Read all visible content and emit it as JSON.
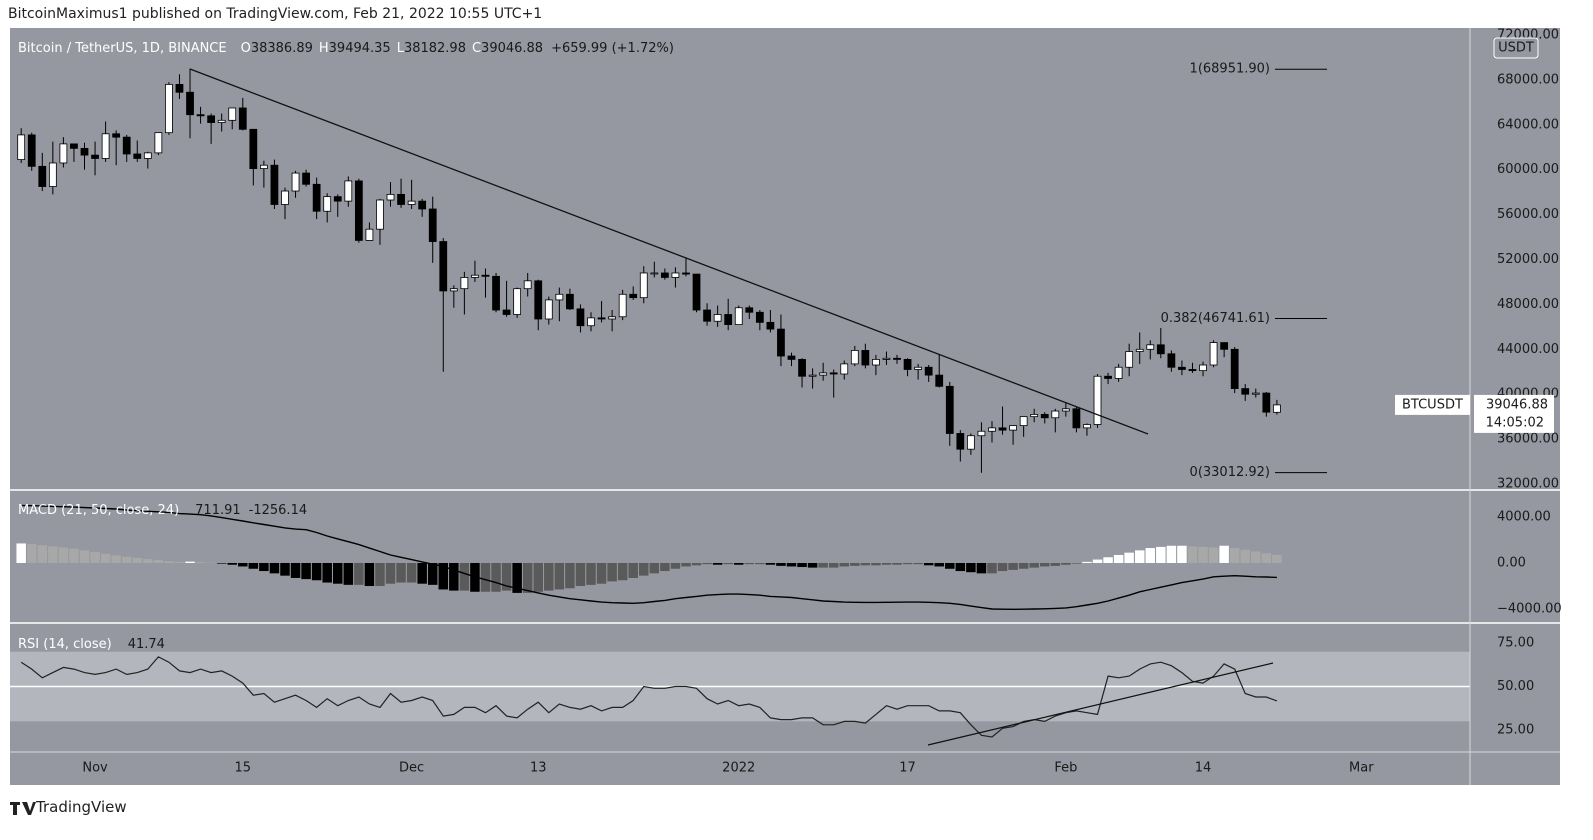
{
  "header": {
    "publisher": "BitcoinMaximus1 published on TradingView.com, Feb 21, 2022 10:55 UTC+1",
    "brand": "TradingView"
  },
  "chart_data": [
    {
      "type": "candlestick",
      "title": "Bitcoin / TetherUS, 1D, BINANCE",
      "ohlc_labels": [
        "O",
        "H",
        "L",
        "C"
      ],
      "change": "+659.99 (+1.72%)",
      "symbol": "BTCUSDT",
      "countdown": "14:05:02",
      "currency": "USDT",
      "color_up": "#ffffff",
      "color_down": "#000000",
      "grid": false,
      "xlim": [
        -1.06,
        137.3
      ],
      "xticks": [
        {
          "value": 7,
          "label": "Nov"
        },
        {
          "value": 21,
          "label": "15"
        },
        {
          "value": 37,
          "label": "Dec"
        },
        {
          "value": 49,
          "label": "13"
        },
        {
          "value": 68,
          "label": "2022"
        },
        {
          "value": 84,
          "label": "17"
        },
        {
          "value": 99,
          "label": "Feb"
        },
        {
          "value": 112,
          "label": "14"
        },
        {
          "value": 127,
          "label": "Mar"
        }
      ],
      "ylim": [
        31465,
        72624
      ],
      "yticks": [
        {
          "value": 32000,
          "label": "32000.00"
        },
        {
          "value": 36000,
          "label": "36000.00"
        },
        {
          "value": 40000,
          "label": "40000.00"
        },
        {
          "value": 44000,
          "label": "44000.00"
        },
        {
          "value": 48000,
          "label": "48000.00"
        },
        {
          "value": 52000,
          "label": "52000.00"
        },
        {
          "value": 56000,
          "label": "56000.00"
        },
        {
          "value": 60000,
          "label": "60000.00"
        },
        {
          "value": 64000,
          "label": "64000.00"
        },
        {
          "value": 68000,
          "label": "68000.00"
        },
        {
          "value": 72000,
          "label": "72000.00"
        }
      ],
      "fib_levels": [
        {
          "value": 68951.9,
          "label": "1(68951.90)"
        },
        {
          "value": 46741.61,
          "label": "0.382(46741.61)"
        },
        {
          "value": 33012.92,
          "label": "0(33012.92)"
        }
      ],
      "candles": [
        [
          60900,
          63700,
          60600,
          63100
        ],
        [
          63100,
          63300,
          59900,
          60300
        ],
        [
          60300,
          61500,
          58100,
          58500
        ],
        [
          58500,
          62500,
          57800,
          60600
        ],
        [
          60600,
          62900,
          60200,
          62300
        ],
        [
          62300,
          62300,
          60700,
          61900
        ],
        [
          61900,
          62400,
          60000,
          61300
        ],
        [
          61300,
          62500,
          59500,
          61000
        ],
        [
          61000,
          64300,
          60700,
          63200
        ],
        [
          63200,
          63500,
          60400,
          62900
        ],
        [
          62900,
          63100,
          60700,
          61400
        ],
        [
          61400,
          62600,
          60700,
          61000
        ],
        [
          61000,
          61600,
          60100,
          61500
        ],
        [
          61500,
          63300,
          61300,
          63300
        ],
        [
          63300,
          67800,
          63100,
          67600
        ],
        [
          67600,
          68500,
          66300,
          66900
        ],
        [
          66900,
          69000,
          62800,
          64900
        ],
        [
          64900,
          65600,
          64100,
          64800
        ],
        [
          64800,
          65000,
          62300,
          64200
        ],
        [
          64200,
          65000,
          63400,
          64400
        ],
        [
          64400,
          65500,
          63600,
          65500
        ],
        [
          65500,
          66400,
          63500,
          63600
        ],
        [
          63600,
          63600,
          58600,
          60100
        ],
        [
          60100,
          60800,
          58400,
          60400
        ],
        [
          60400,
          60900,
          56500,
          56900
        ],
        [
          56900,
          58400,
          55600,
          58100
        ],
        [
          58100,
          59900,
          57500,
          59700
        ],
        [
          59700,
          60000,
          58500,
          58700
        ],
        [
          58700,
          59300,
          55600,
          56300
        ],
        [
          56300,
          57900,
          55300,
          57600
        ],
        [
          57600,
          57800,
          55800,
          57200
        ],
        [
          57200,
          59400,
          56700,
          59000
        ],
        [
          59000,
          59200,
          53500,
          53700
        ],
        [
          53700,
          55300,
          53700,
          54700
        ],
        [
          54700,
          57400,
          53300,
          57300
        ],
        [
          57300,
          58900,
          56700,
          57800
        ],
        [
          57800,
          59200,
          56600,
          56900
        ],
        [
          56900,
          59100,
          56500,
          57200
        ],
        [
          57200,
          57400,
          55800,
          56500
        ],
        [
          56500,
          57600,
          51700,
          53600
        ],
        [
          53600,
          53900,
          42000,
          49200
        ],
        [
          49200,
          49700,
          47700,
          49400
        ],
        [
          49400,
          50900,
          47100,
          50400
        ],
        [
          50400,
          51900,
          50000,
          50600
        ],
        [
          50600,
          51200,
          48600,
          50500
        ],
        [
          50500,
          50800,
          47300,
          47500
        ],
        [
          47500,
          50100,
          46900,
          47100
        ],
        [
          47100,
          49500,
          46800,
          49400
        ],
        [
          49400,
          50800,
          48700,
          50100
        ],
        [
          50100,
          50200,
          45700,
          46700
        ],
        [
          46700,
          48700,
          46200,
          48400
        ],
        [
          48400,
          49500,
          46500,
          48900
        ],
        [
          48900,
          49400,
          47500,
          47600
        ],
        [
          47600,
          48000,
          45500,
          46100
        ],
        [
          46100,
          47300,
          45600,
          46800
        ],
        [
          46800,
          48300,
          46400,
          46700
        ],
        [
          46700,
          47500,
          45600,
          46900
        ],
        [
          46900,
          49300,
          46600,
          48900
        ],
        [
          48900,
          49600,
          48400,
          48600
        ],
        [
          48600,
          51400,
          48100,
          50800
        ],
        [
          50800,
          51800,
          50400,
          50800
        ],
        [
          50800,
          51200,
          50200,
          50400
        ],
        [
          50400,
          51300,
          49500,
          50800
        ],
        [
          50800,
          52100,
          50500,
          50700
        ],
        [
          50700,
          50700,
          47300,
          47500
        ],
        [
          47500,
          48100,
          46100,
          46500
        ],
        [
          46500,
          47900,
          46000,
          47100
        ],
        [
          47100,
          48500,
          45700,
          46200
        ],
        [
          46200,
          47900,
          46200,
          47700
        ],
        [
          47700,
          47900,
          46700,
          47300
        ],
        [
          47300,
          47500,
          45700,
          46400
        ],
        [
          46400,
          47500,
          45500,
          45800
        ],
        [
          45800,
          47100,
          42500,
          43400
        ],
        [
          43400,
          43700,
          42500,
          43100
        ],
        [
          43100,
          43200,
          40600,
          41600
        ],
        [
          41600,
          42300,
          40500,
          41700
        ],
        [
          41700,
          42800,
          41200,
          41900
        ],
        [
          41900,
          42200,
          39700,
          41800
        ],
        [
          41800,
          43000,
          41300,
          42700
        ],
        [
          42700,
          44300,
          42500,
          43900
        ],
        [
          43900,
          44500,
          42300,
          42600
        ],
        [
          42600,
          43500,
          41700,
          43100
        ],
        [
          43100,
          43800,
          42600,
          43200
        ],
        [
          43200,
          43500,
          42700,
          43100
        ],
        [
          43100,
          43200,
          41600,
          42200
        ],
        [
          42200,
          42700,
          41300,
          42400
        ],
        [
          42400,
          42600,
          41100,
          41700
        ],
        [
          41700,
          43500,
          40600,
          40700
        ],
        [
          40700,
          41100,
          35400,
          36500
        ],
        [
          36500,
          36800,
          34000,
          35100
        ],
        [
          35100,
          36500,
          34600,
          36300
        ],
        [
          36300,
          37500,
          33000,
          36700
        ],
        [
          36700,
          37600,
          35700,
          37000
        ],
        [
          37000,
          38900,
          36400,
          36800
        ],
        [
          36800,
          37200,
          35500,
          37200
        ],
        [
          37200,
          38000,
          36200,
          38000
        ],
        [
          38000,
          38700,
          37500,
          38200
        ],
        [
          38200,
          38400,
          37400,
          37900
        ],
        [
          37900,
          38700,
          36600,
          38500
        ],
        [
          38500,
          39300,
          38000,
          38700
        ],
        [
          38700,
          38900,
          36600,
          37000
        ],
        [
          37000,
          37400,
          36300,
          37300
        ],
        [
          37300,
          41800,
          37000,
          41600
        ],
        [
          41600,
          41900,
          40900,
          41400
        ],
        [
          41400,
          42700,
          41100,
          42400
        ],
        [
          42400,
          44500,
          41600,
          43800
        ],
        [
          43800,
          45500,
          42700,
          44000
        ],
        [
          44000,
          44800,
          43100,
          44400
        ],
        [
          44400,
          45900,
          43200,
          43600
        ],
        [
          43600,
          43900,
          42000,
          42400
        ],
        [
          42400,
          43000,
          41700,
          42200
        ],
        [
          42200,
          42800,
          41900,
          42100
        ],
        [
          42100,
          42900,
          41600,
          42600
        ],
        [
          42600,
          44800,
          42400,
          44600
        ],
        [
          44600,
          44600,
          43300,
          44000
        ],
        [
          44000,
          44200,
          40100,
          40500
        ],
        [
          40500,
          40900,
          39400,
          40000
        ],
        [
          40000,
          40500,
          39700,
          40100
        ],
        [
          40100,
          40200,
          38000,
          38400
        ],
        [
          38386.89,
          39494.35,
          38182.98,
          39046.88
        ]
      ]
    },
    {
      "type": "macd",
      "title": "MACD (21, 50, close, 24)",
      "ylim": [
        -5217,
        6348
      ],
      "yticks": [
        {
          "value": -4000,
          "label": "−4000.00"
        },
        {
          "value": 0,
          "label": "0.00"
        },
        {
          "value": 4000,
          "label": "4000.00"
        }
      ],
      "histogram": {
        "colors": {
          "rising_above": "#ffffff",
          "falling_above": "#a8a8a8",
          "rising_below": "#5a5a5a",
          "falling_below": "#000000"
        },
        "values": [
          1700,
          1650,
          1550,
          1450,
          1350,
          1250,
          1100,
          950,
          800,
          650,
          550,
          450,
          350,
          250,
          150,
          100,
          120,
          80,
          30,
          -50,
          -150,
          -300,
          -500,
          -700,
          -900,
          -1100,
          -1300,
          -1400,
          -1500,
          -1700,
          -1800,
          -1900,
          -1900,
          -2000,
          -2000,
          -1800,
          -1700,
          -1700,
          -1800,
          -1900,
          -2300,
          -2400,
          -2400,
          -2500,
          -2500,
          -2500,
          -2400,
          -2600,
          -2600,
          -2500,
          -2400,
          -2300,
          -2200,
          -2000,
          -1900,
          -1800,
          -1600,
          -1500,
          -1300,
          -1100,
          -900,
          -700,
          -500,
          -300,
          -200,
          -100,
          -150,
          -100,
          -150,
          -100,
          -100,
          -150,
          -250,
          -300,
          -350,
          -400,
          -400,
          -400,
          -300,
          -250,
          -200,
          -200,
          -150,
          -150,
          -100,
          -100,
          -200,
          -300,
          -500,
          -700,
          -800,
          -900,
          -900,
          -700,
          -600,
          -500,
          -400,
          -300,
          -250,
          -150,
          -50,
          100,
          300,
          500,
          700,
          900,
          1100,
          1300,
          1400,
          1500,
          1500,
          1450,
          1400,
          1350,
          1500,
          1300,
          1150,
          1000,
          850,
          711.91
        ]
      },
      "series": [
        {
          "color": "#000000",
          "values": [
            5000,
            4980,
            4950,
            4920,
            4900,
            4860,
            4820,
            4780,
            4740,
            4700,
            4600,
            4550,
            4500,
            4450,
            4400,
            4300,
            4250,
            4200,
            4100,
            3950,
            3800,
            3650,
            3500,
            3350,
            3200,
            3050,
            2950,
            2900,
            2650,
            2350,
            2100,
            1850,
            1600,
            1300,
            1000,
            700,
            500,
            300,
            100,
            -100,
            -300,
            -600,
            -900,
            -1200,
            -1450,
            -1700,
            -2000,
            -2200,
            -2400,
            -2600,
            -2800,
            -2950,
            -3100,
            -3200,
            -3300,
            -3400,
            -3450,
            -3480,
            -3500,
            -3450,
            -3350,
            -3250,
            -3100,
            -3000,
            -2900,
            -2800,
            -2750,
            -2700,
            -2700,
            -2750,
            -2800,
            -2900,
            -2950,
            -3000,
            -3100,
            -3200,
            -3300,
            -3350,
            -3400,
            -3420,
            -3430,
            -3430,
            -3420,
            -3410,
            -3400,
            -3400,
            -3420,
            -3450,
            -3500,
            -3600,
            -3750,
            -3880,
            -4000,
            -4020,
            -4030,
            -4020,
            -4000,
            -3980,
            -3950,
            -3900,
            -3800,
            -3650,
            -3500,
            -3300,
            -3050,
            -2800,
            -2500,
            -2300,
            -2100,
            -1900,
            -1700,
            -1550,
            -1400,
            -1200,
            -1150,
            -1100,
            -1150,
            -1200,
            -1220,
            -1256.14
          ]
        }
      ]
    },
    {
      "type": "rsi",
      "title": "RSI (14, close)",
      "color": "#222222",
      "ylim": [
        12.4,
        86.5
      ],
      "yticks": [
        {
          "value": 25,
          "label": "25.00"
        },
        {
          "value": 50,
          "label": "50.00"
        },
        {
          "value": 75,
          "label": "75.00"
        }
      ],
      "band": [
        30,
        70
      ],
      "band_color": "#b4b6bd",
      "midline": 50,
      "values": [
        64,
        60,
        55,
        58,
        61,
        60,
        58,
        57,
        58,
        60,
        57,
        58,
        60,
        67,
        64,
        59,
        58,
        60,
        58,
        59,
        56,
        52,
        45,
        46,
        41,
        43,
        45,
        42,
        38,
        43,
        39,
        42,
        44,
        40,
        38,
        46,
        41,
        42,
        44,
        42,
        33,
        34,
        38,
        38,
        35,
        39,
        33,
        32,
        37,
        41,
        35,
        40,
        38,
        37,
        39,
        36,
        38,
        38,
        42,
        50,
        49,
        49,
        50,
        50,
        49,
        43,
        40,
        42,
        39,
        40,
        38,
        32,
        31,
        31,
        32,
        32,
        28,
        28,
        30,
        30,
        29,
        34,
        39,
        37,
        39,
        39,
        39,
        36,
        36,
        35,
        28,
        22,
        21,
        26,
        27,
        30,
        31,
        30,
        33,
        35,
        36,
        35,
        34,
        56,
        55,
        56,
        60,
        63,
        64,
        62,
        58,
        53,
        52,
        56,
        63,
        60,
        46,
        44,
        44,
        41.74
      ]
    }
  ]
}
